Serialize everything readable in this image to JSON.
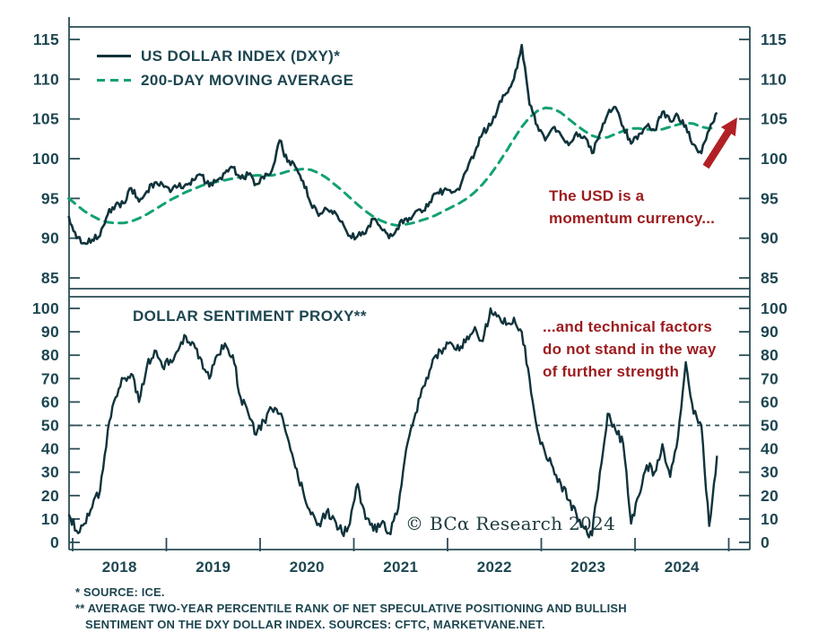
{
  "colors": {
    "dxy_line": "#10333b",
    "ma_line": "#12a173",
    "sentiment_line": "#10333b",
    "axis_text": "#1d4650",
    "axis_line": "#2a4d55",
    "annotation_red": "#9c1b1e",
    "arrow_red": "#b12025",
    "background": "#ffffff"
  },
  "top_panel": {
    "legend": [
      {
        "label": "US DOLLAR INDEX (DXY)*",
        "style": "solid"
      },
      {
        "label": "200-DAY MOVING AVERAGE",
        "style": "dashed"
      }
    ],
    "annotation_lines": [
      "The USD is a",
      "momentum currency..."
    ],
    "trend_arrow": "up-right"
  },
  "bottom_panel": {
    "title": "DOLLAR SENTIMENT PROXY**",
    "annotation_lines": [
      "...and technical factors",
      "do not stand in the way",
      "of further strength"
    ]
  },
  "copyright": "© BCα Research 2024",
  "footnotes": {
    "line1": "* SOURCE: ICE.",
    "line2": "** AVERAGE TWO-YEAR PERCENTILE RANK OF NET SPECULATIVE POSITIONING AND BULLISH",
    "line3": "SENTIMENT ON THE DXY DOLLAR INDEX. SOURCES: CFTC, MARKETVANE.NET."
  },
  "chart_data": [
    {
      "type": "line",
      "panel": "top",
      "title": "",
      "x_start_year": 2017.9583,
      "x_step_years": 0.0833333,
      "x_tick_years": [
        2018,
        2019,
        2020,
        2021,
        2022,
        2023,
        2024,
        2025
      ],
      "x_labels": [
        "2018",
        "2019",
        "2020",
        "2021",
        "2022",
        "2023",
        "2024"
      ],
      "ylim": [
        83.6,
        116.6
      ],
      "y_ticks": [
        85,
        90,
        95,
        100,
        105,
        110,
        115
      ],
      "noise_texture": {
        "daily_data": true,
        "amplitude": 0.45
      },
      "series": [
        {
          "name": "US DOLLAR INDEX (DXY)*",
          "style": "solid",
          "values": [
            92.8,
            90.0,
            89.4,
            89.8,
            90.3,
            93.0,
            94.2,
            94.4,
            96.3,
            94.6,
            95.9,
            97.0,
            96.8,
            95.8,
            96.5,
            96.8,
            97.3,
            97.9,
            96.5,
            97.3,
            98.2,
            98.9,
            97.5,
            98.0,
            96.8,
            97.5,
            98.5,
            102.3,
            99.6,
            99.0,
            97.2,
            94.3,
            92.8,
            93.7,
            93.4,
            92.1,
            90.3,
            90.3,
            90.6,
            92.4,
            91.2,
            90.0,
            91.2,
            92.4,
            92.7,
            93.6,
            94.0,
            95.6,
            96.0,
            95.7,
            96.1,
            98.6,
            100.8,
            103.2,
            104.2,
            106.6,
            108.2,
            110.0,
            114.3,
            106.8,
            104.2,
            102.3,
            103.9,
            103.0,
            101.7,
            103.3,
            102.8,
            100.7,
            103.2,
            105.6,
            106.5,
            104.0,
            101.9,
            103.1,
            104.1,
            103.6,
            105.9,
            104.7,
            105.4,
            104.2,
            101.8,
            100.7,
            103.6,
            105.8
          ]
        },
        {
          "name": "200-DAY MOVING AVERAGE",
          "style": "dashed",
          "values": [
            95.0,
            94.2,
            93.4,
            92.8,
            92.3,
            92.0,
            91.9,
            91.9,
            92.1,
            92.5,
            93.0,
            93.6,
            94.2,
            94.8,
            95.3,
            95.8,
            96.2,
            96.6,
            96.9,
            97.1,
            97.3,
            97.5,
            97.7,
            97.8,
            97.9,
            97.9,
            97.9,
            98.1,
            98.4,
            98.6,
            98.7,
            98.6,
            98.2,
            97.6,
            96.8,
            96.0,
            95.1,
            94.2,
            93.4,
            92.7,
            92.2,
            91.8,
            91.6,
            91.7,
            91.9,
            92.2,
            92.5,
            92.9,
            93.4,
            93.9,
            94.4,
            95.0,
            95.8,
            96.8,
            98.0,
            99.4,
            100.9,
            102.5,
            104.0,
            105.2,
            106.0,
            106.4,
            106.3,
            105.8,
            105.0,
            104.2,
            103.5,
            102.9,
            102.6,
            102.7,
            103.1,
            103.5,
            103.8,
            103.8,
            103.7,
            103.6,
            103.7,
            104.0,
            104.3,
            104.5,
            104.4,
            104.0,
            103.8,
            104.0
          ]
        }
      ]
    },
    {
      "type": "line",
      "panel": "bottom",
      "title": "DOLLAR SENTIMENT PROXY**",
      "x_start_year": 2017.9583,
      "x_step_years": 0.0833333,
      "ylim": [
        -3,
        105
      ],
      "y_ticks": [
        0,
        10,
        20,
        30,
        40,
        50,
        60,
        70,
        80,
        90,
        100
      ],
      "reference_line_y": 50,
      "noise_texture": {
        "daily_data": true,
        "amplitude": 2.2
      },
      "series": [
        {
          "name": "DOLLAR SENTIMENT PROXY**",
          "style": "solid",
          "values": [
            12,
            5,
            8,
            15,
            22,
            48,
            62,
            70,
            72,
            60,
            75,
            82,
            75,
            78,
            82,
            88,
            85,
            78,
            70,
            80,
            85,
            80,
            62,
            55,
            46,
            52,
            57,
            55,
            45,
            32,
            22,
            12,
            8,
            13,
            10,
            4,
            8,
            25,
            10,
            5,
            8,
            4,
            12,
            35,
            50,
            62,
            70,
            80,
            83,
            85,
            82,
            88,
            92,
            86,
            100,
            97,
            93,
            96,
            90,
            70,
            48,
            38,
            32,
            25,
            18,
            12,
            6,
            3,
            30,
            55,
            48,
            42,
            8,
            20,
            33,
            30,
            42,
            28,
            45,
            77,
            55,
            50,
            7,
            37
          ]
        }
      ]
    }
  ]
}
